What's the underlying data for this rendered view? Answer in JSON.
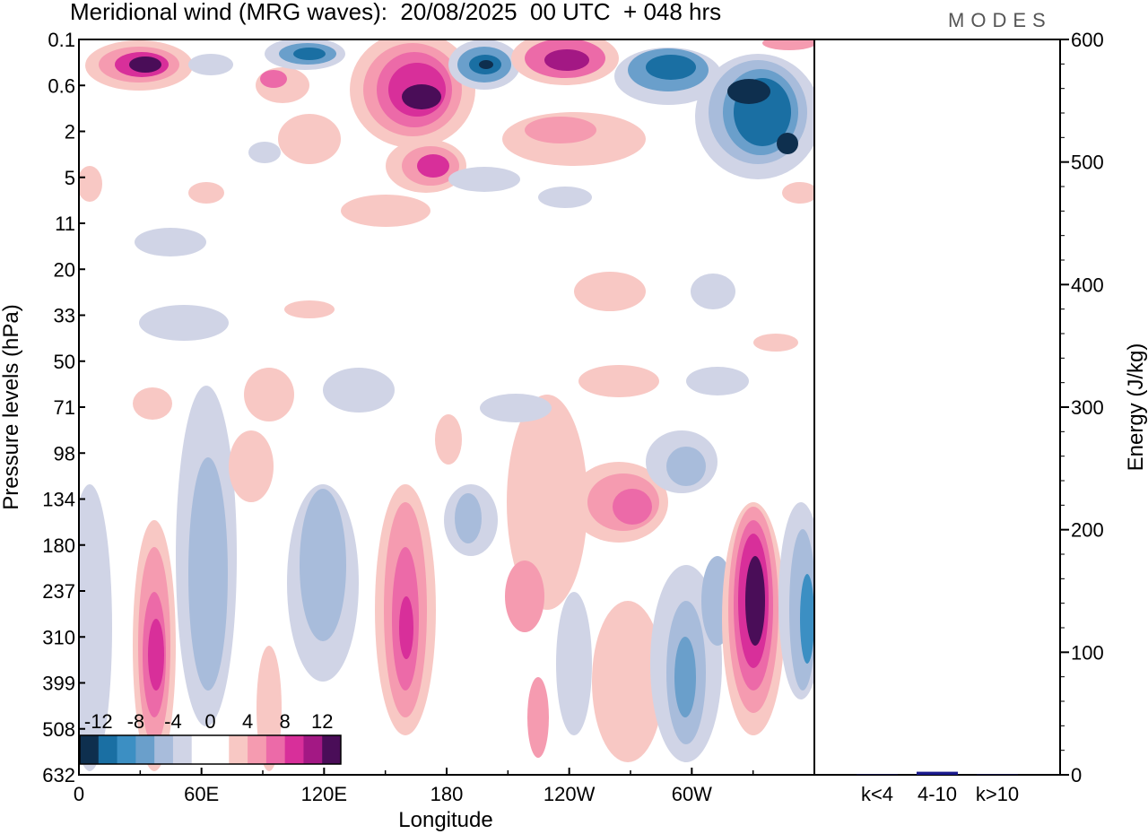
{
  "chart_data": {
    "type": "heatmap",
    "title": "Meridional wind (MRG waves):  20/08/2025  00 UTC  + 048 hrs",
    "xlabel": "Longitude",
    "ylabel": "Pressure levels (hPa)",
    "y2label": "Energy (J/kg)",
    "x_ticks": [
      "0",
      "60E",
      "120E",
      "180",
      "120W",
      "60W"
    ],
    "y_ticks": [
      "0.1",
      "0.6",
      "2",
      "5",
      "11",
      "20",
      "33",
      "50",
      "71",
      "98",
      "134",
      "180",
      "237",
      "310",
      "399",
      "508",
      "632"
    ],
    "y2_ticks": [
      "0",
      "100",
      "200",
      "300",
      "400",
      "500",
      "600"
    ],
    "y2lim": [
      0,
      600
    ],
    "colorbar": {
      "labels": [
        "-12",
        "-8",
        "-4",
        "0",
        "4",
        "8",
        "12"
      ],
      "colors": [
        "#0e2f4e",
        "#1a6fa3",
        "#3c8fc3",
        "#6a9fcb",
        "#a8bcdb",
        "#d0d4e6",
        "#ffffff",
        "#ffffff",
        "#f8c8c4",
        "#f59bb0",
        "#ec6aa8",
        "#d82f9a",
        "#a31884",
        "#4a0d58"
      ]
    },
    "energy_bars": {
      "categories": [
        "k<4",
        "4-10",
        "k>10"
      ],
      "values": [
        0.3,
        2.5,
        0.3
      ],
      "color": "#1a1a8c"
    }
  },
  "logo": "MODES"
}
